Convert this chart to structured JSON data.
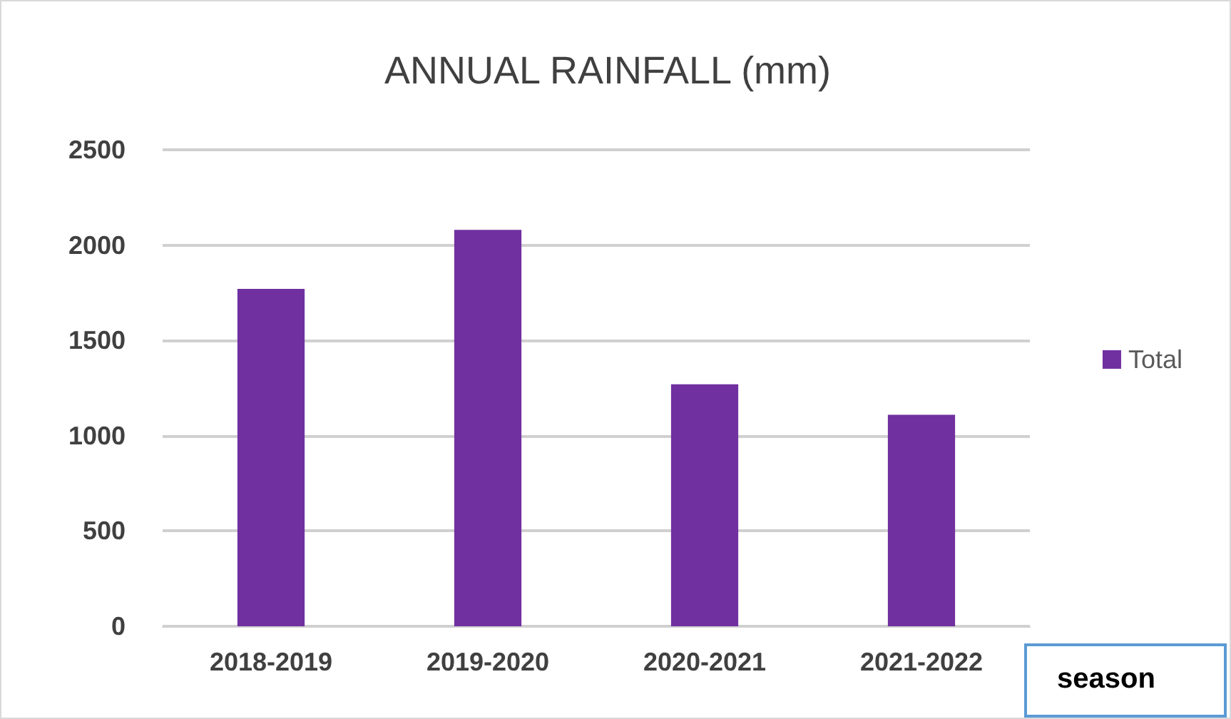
{
  "chart_data": {
    "type": "bar",
    "title": "ANNUAL RAINFALL (mm)",
    "xlabel": "season",
    "categories": [
      "2018-2019",
      "2019-2020",
      "2020-2021",
      "2021-2022"
    ],
    "series": [
      {
        "name": "Total",
        "color": "#7030a0",
        "values": [
          1770,
          2080,
          1270,
          1110
        ]
      }
    ],
    "ylim": [
      0,
      2500
    ],
    "yticks": [
      0,
      500,
      1000,
      1500,
      2000,
      2500
    ],
    "grid": "y",
    "legend": "right"
  }
}
